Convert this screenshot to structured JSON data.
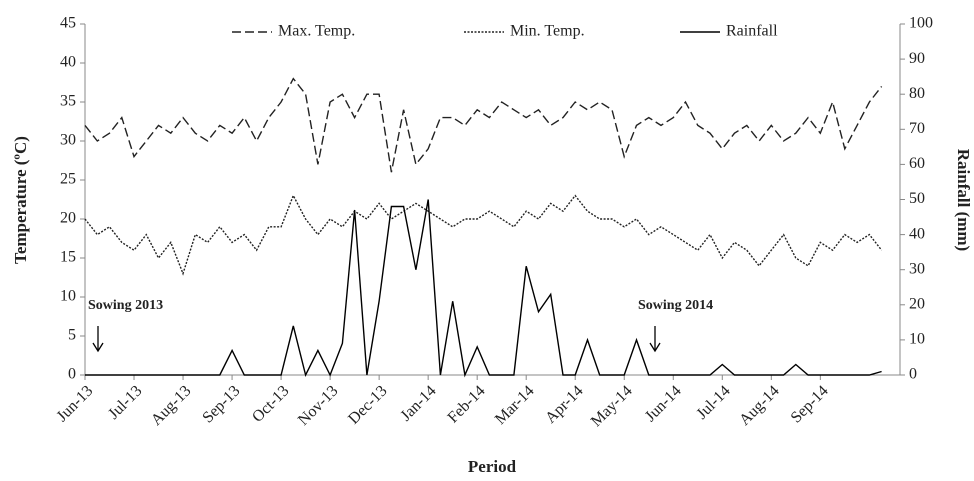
{
  "chart_data": {
    "type": "line",
    "x_label": "Period",
    "y_label": "Temperature (ºC)",
    "y2_label": "Rainfall (mm)",
    "annotations": [
      "Sowing 2013",
      "Sowing 2014"
    ],
    "legend": "top",
    "categories": [
      "Jun-13",
      null,
      null,
      null,
      "Jul-13",
      null,
      null,
      null,
      "Aug-13",
      null,
      null,
      null,
      "Sep-13",
      null,
      null,
      null,
      "Oct-13",
      null,
      null,
      null,
      "Nov-13",
      null,
      null,
      null,
      "Dec-13",
      null,
      null,
      null,
      "Jan-14",
      null,
      null,
      null,
      "Feb-14",
      null,
      null,
      null,
      "Mar-14",
      null,
      null,
      null,
      "Apr-14",
      null,
      null,
      null,
      "May-14",
      null,
      null,
      null,
      "Jun-14",
      null,
      null,
      null,
      "Jul-14",
      null,
      null,
      null,
      "Aug-14",
      null,
      null,
      null,
      "Sep-14",
      null,
      null,
      null,
      null,
      null
    ],
    "series": [
      {
        "name": "Max. Temp.",
        "color": "#222222",
        "dash": "dashed",
        "axis": "y",
        "values": [
          32,
          30,
          31,
          33,
          28,
          30,
          32,
          31,
          33,
          31,
          30,
          32,
          31,
          33,
          30,
          33,
          35,
          38,
          36,
          27,
          35,
          36,
          33,
          36,
          36,
          26,
          34,
          27,
          29,
          33,
          33,
          32,
          34,
          33,
          35,
          34,
          33,
          34,
          32,
          33,
          35,
          34,
          35,
          34,
          28,
          32,
          33,
          32,
          33,
          35,
          32,
          31,
          29,
          31,
          32,
          30,
          32,
          30,
          31,
          33,
          31,
          35,
          29,
          32,
          35,
          37
        ]
      },
      {
        "name": "Min. Temp.",
        "color": "#222222",
        "dash": "dotted",
        "axis": "y",
        "values": [
          20,
          18,
          19,
          17,
          16,
          18,
          15,
          17,
          13,
          18,
          17,
          19,
          17,
          18,
          16,
          19,
          19,
          23,
          20,
          18,
          20,
          19,
          21,
          20,
          22,
          20,
          21,
          22,
          21,
          20,
          19,
          20,
          20,
          21,
          20,
          19,
          21,
          20,
          22,
          21,
          23,
          21,
          20,
          20,
          19,
          20,
          18,
          19,
          18,
          17,
          16,
          18,
          15,
          17,
          16,
          14,
          16,
          18,
          15,
          14,
          17,
          16,
          18,
          17,
          18,
          16
        ]
      },
      {
        "name": "Rainfall",
        "color": "#000000",
        "dash": "solid",
        "axis": "y2",
        "values": [
          0,
          0,
          0,
          0,
          0,
          0,
          0,
          0,
          0,
          0,
          0,
          0,
          7,
          0,
          0,
          0,
          0,
          14,
          0,
          7,
          0,
          9,
          47,
          0,
          21,
          48,
          48,
          30,
          50,
          0,
          21,
          0,
          8,
          0,
          0,
          0,
          31,
          18,
          23,
          0,
          0,
          10,
          0,
          0,
          0,
          10,
          0,
          0,
          0,
          0,
          0,
          0,
          3,
          0,
          0,
          0,
          0,
          0,
          3,
          0,
          0,
          0,
          0,
          0,
          0,
          1
        ]
      }
    ],
    "ylim": [
      0,
      45
    ],
    "yticks": [
      0,
      5,
      10,
      15,
      20,
      25,
      30,
      35,
      40,
      45
    ],
    "y2lim": [
      0,
      100
    ],
    "y2ticks": [
      0,
      10,
      20,
      30,
      40,
      50,
      60,
      70,
      80,
      90,
      100
    ]
  }
}
